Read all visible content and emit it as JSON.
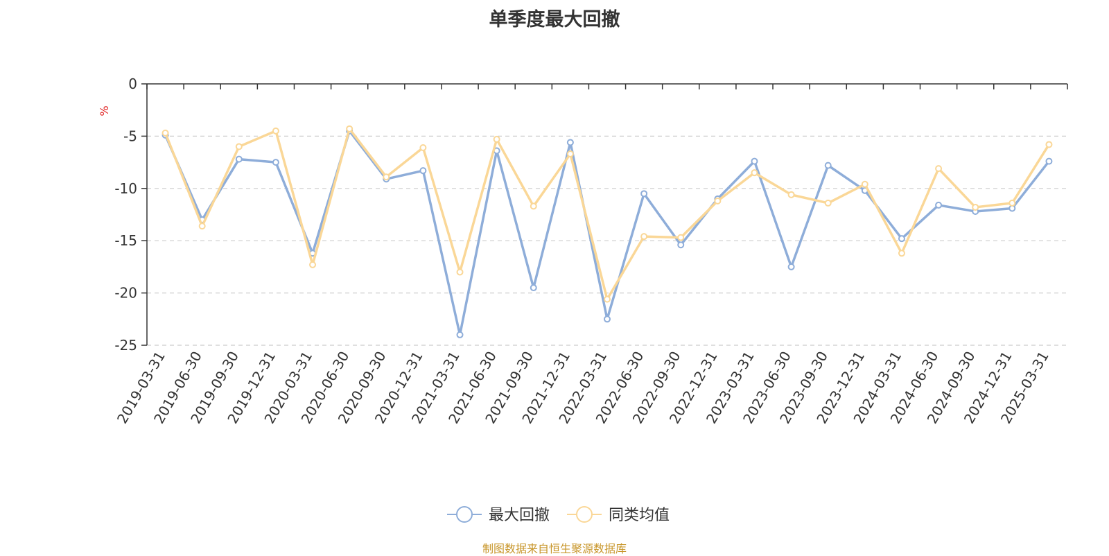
{
  "chart_data": {
    "type": "line",
    "title": "单季度最大回撤",
    "ylabel": "%",
    "ylim": [
      -25,
      0
    ],
    "yticks": [
      0,
      -5,
      -10,
      -15,
      -20,
      -25
    ],
    "grid": true,
    "legend_position": "bottom",
    "categories": [
      "2019-03-31",
      "2019-06-30",
      "2019-09-30",
      "2019-12-31",
      "2020-03-31",
      "2020-06-30",
      "2020-09-30",
      "2020-12-31",
      "2021-03-31",
      "2021-06-30",
      "2021-09-30",
      "2021-12-31",
      "2022-03-31",
      "2022-06-30",
      "2022-09-30",
      "2022-12-31",
      "2023-03-31",
      "2023-06-30",
      "2023-09-30",
      "2023-12-31",
      "2024-03-31",
      "2024-06-30",
      "2024-09-30",
      "2024-12-31",
      "2025-03-31"
    ],
    "series": [
      {
        "name": "最大回撤",
        "color": "#8eadd9",
        "values": [
          -4.9,
          -13.0,
          -7.2,
          -7.5,
          -16.2,
          -4.5,
          -9.1,
          -8.3,
          -24.0,
          -6.4,
          -19.5,
          -5.6,
          -22.5,
          -10.5,
          -15.4,
          -11.0,
          -7.4,
          -17.5,
          -7.8,
          -10.2,
          -14.8,
          -11.6,
          -12.2,
          -11.9,
          -7.4
        ]
      },
      {
        "name": "同类均值",
        "color": "#fad797",
        "values": [
          -4.7,
          -13.6,
          -6.0,
          -4.5,
          -17.3,
          -4.3,
          -8.9,
          -6.1,
          -18.0,
          -5.3,
          -11.7,
          -6.7,
          -20.6,
          -14.6,
          -14.7,
          -11.2,
          -8.5,
          -10.6,
          -11.4,
          -9.6,
          -16.2,
          -8.1,
          -11.8,
          -11.4,
          -5.8
        ]
      }
    ]
  },
  "source_note": "制图数据来自恒生聚源数据库"
}
